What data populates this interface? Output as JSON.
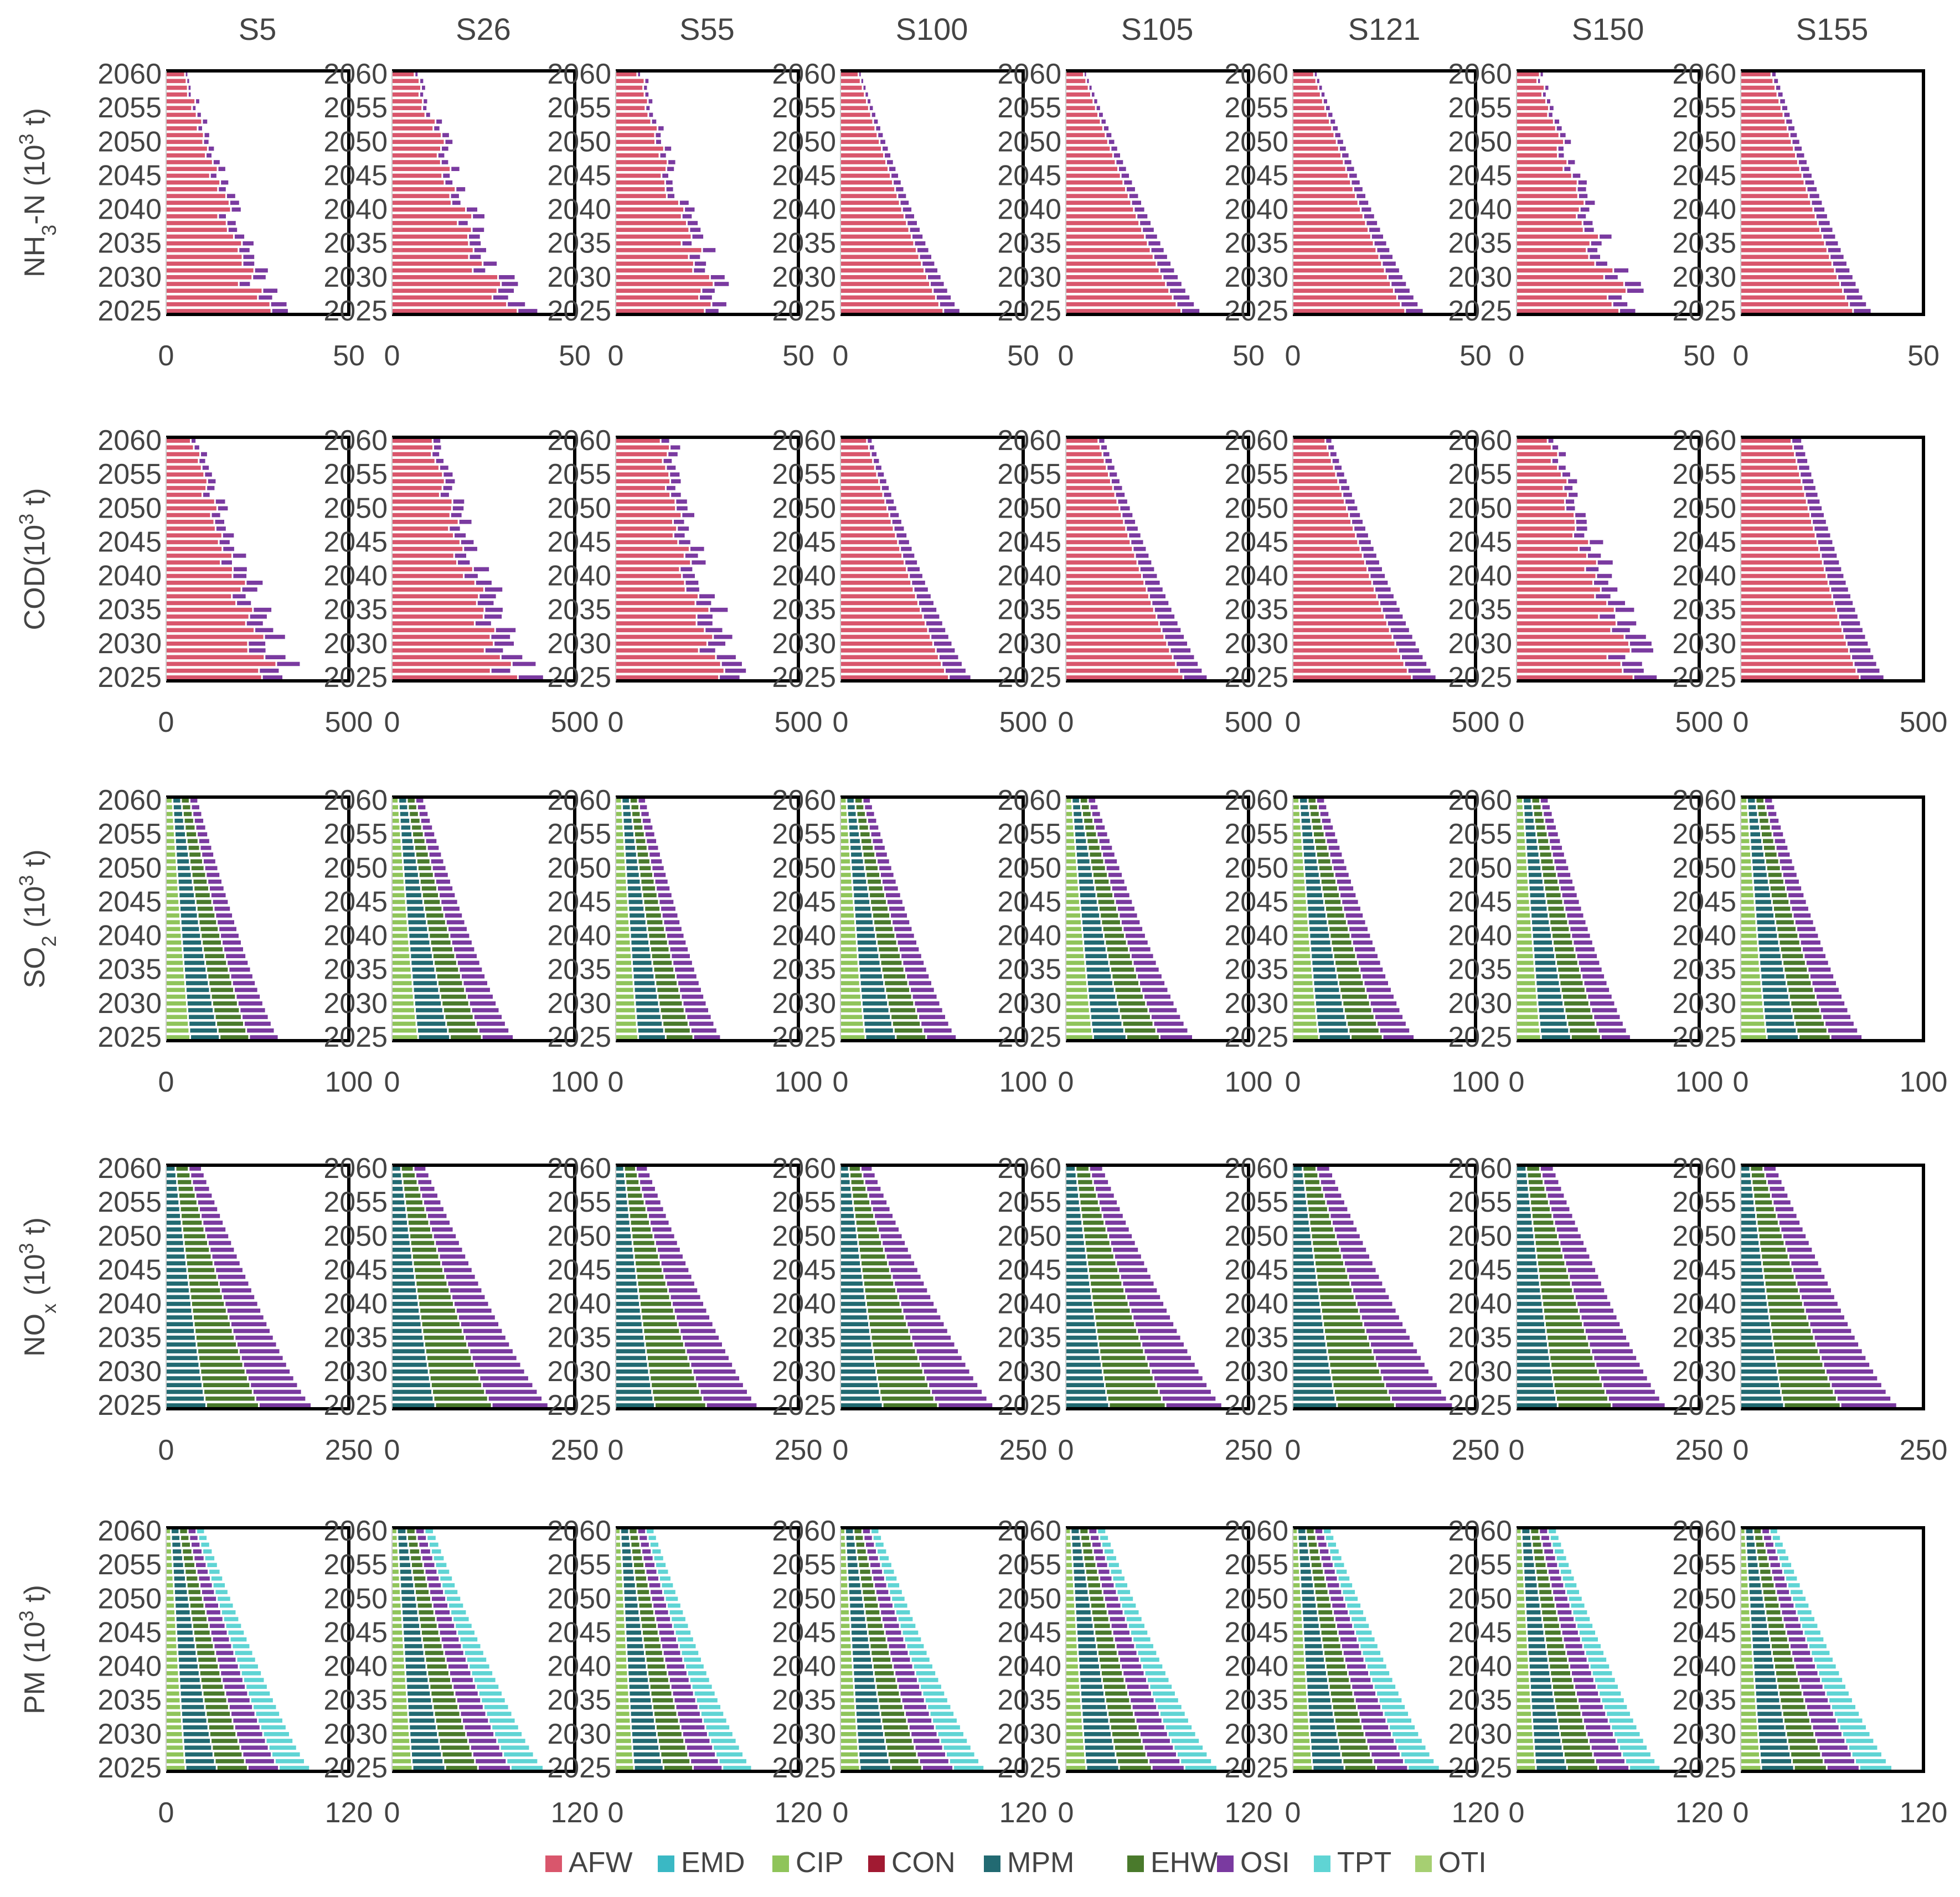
{
  "chart_data": {
    "type": "bar",
    "subtype": "stacked-horizontal",
    "scenarios": [
      "S5",
      "S26",
      "S55",
      "S100",
      "S105",
      "S121",
      "S150",
      "S155"
    ],
    "years": [
      2025,
      2026,
      2027,
      2028,
      2029,
      2030,
      2031,
      2032,
      2033,
      2034,
      2035,
      2036,
      2037,
      2038,
      2039,
      2040,
      2041,
      2042,
      2043,
      2044,
      2045,
      2046,
      2047,
      2048,
      2049,
      2050,
      2051,
      2052,
      2053,
      2054,
      2055,
      2056,
      2057,
      2058,
      2059,
      2060
    ],
    "year_tick_labels": [
      "2025",
      "2030",
      "2035",
      "2040",
      "2045",
      "2050",
      "2055",
      "2060"
    ],
    "legend": [
      {
        "label": "AFW",
        "color": "#d9566c"
      },
      {
        "label": "EMD",
        "color": "#3ab8c4"
      },
      {
        "label": "CIP",
        "color": "#8fc45a"
      },
      {
        "label": "CON",
        "color": "#a11a32"
      },
      {
        "label": "MPM",
        "color": "#226a72"
      },
      {
        "label": "EHW",
        "color": "#4a7a2c"
      },
      {
        "label": "OSI",
        "color": "#7a3aa0"
      },
      {
        "label": "TPT",
        "color": "#5fd4d4"
      },
      {
        "label": "OTI",
        "color": "#a6cf72"
      }
    ],
    "pollutants": [
      {
        "key": "nh3n",
        "label_parts": [
          {
            "t": "NH"
          },
          {
            "t": "3",
            "sub": true
          },
          {
            "t": "-N (10"
          },
          {
            "t": "3",
            "sup": true
          },
          {
            "t": " t)"
          }
        ],
        "xlim": [
          0,
          50
        ],
        "x_tick_labels": [
          "0",
          "50"
        ],
        "sectors": [
          "AFW",
          "OSI"
        ],
        "totals_2025": [
          31,
          36,
          32,
          33,
          37,
          36,
          35,
          36
        ],
        "totals_2060": [
          6,
          8,
          8,
          6,
          6,
          7,
          7,
          10
        ],
        "share_first": [
          0.86,
          0.86,
          0.86,
          0.86,
          0.86,
          0.86,
          0.86,
          0.86
        ],
        "noisy": [
          true,
          true,
          true,
          false,
          false,
          false,
          true,
          false
        ]
      },
      {
        "key": "cod",
        "label_parts": [
          {
            "t": "COD(10"
          },
          {
            "t": "3",
            "sup": true
          },
          {
            "t": " t)"
          }
        ],
        "xlim": [
          0,
          500
        ],
        "x_tick_labels": [
          "0",
          "500"
        ],
        "sectors": [
          "AFW",
          "OSI"
        ],
        "totals_2025": [
          360,
          390,
          340,
          360,
          390,
          395,
          385,
          395
        ],
        "totals_2060": [
          90,
          120,
          160,
          90,
          110,
          110,
          110,
          170
        ],
        "share_first": [
          0.82,
          0.83,
          0.83,
          0.83,
          0.83,
          0.83,
          0.83,
          0.83
        ],
        "noisy": [
          true,
          true,
          true,
          false,
          false,
          false,
          true,
          false
        ]
      },
      {
        "key": "so2",
        "label_parts": [
          {
            "t": "SO"
          },
          {
            "t": "2",
            "sub": true
          },
          {
            "t": " (10"
          },
          {
            "t": "3",
            "sup": true
          },
          {
            "t": " t)"
          }
        ],
        "xlim": [
          0,
          100
        ],
        "x_tick_labels": [
          "0",
          "100"
        ],
        "sectors": [
          "CIP",
          "MPM",
          "EHW",
          "OSI"
        ],
        "totals_2025": [
          62,
          67,
          58,
          64,
          70,
          67,
          63,
          67
        ],
        "totals_2060": [
          18,
          18,
          17,
          17,
          17,
          18,
          18,
          18
        ],
        "share_first": [
          0.22,
          0.22,
          0.22,
          0.22,
          0.22,
          0.22,
          0.22,
          0.22
        ],
        "noisy": [
          false,
          false,
          false,
          false,
          false,
          false,
          false,
          false
        ]
      },
      {
        "key": "nox",
        "label_parts": [
          {
            "t": "NO"
          },
          {
            "t": "x",
            "sub": true
          },
          {
            "t": " (10"
          },
          {
            "t": "3",
            "sup": true
          },
          {
            "t": " t)"
          }
        ],
        "xlim": [
          0,
          250
        ],
        "x_tick_labels": [
          "0",
          "250"
        ],
        "sectors": [
          "MPM",
          "EHW",
          "OSI"
        ],
        "totals_2025": [
          200,
          215,
          195,
          210,
          215,
          220,
          205,
          215
        ],
        "totals_2060": [
          50,
          48,
          45,
          45,
          52,
          52,
          52,
          50
        ],
        "share_first": [
          0.28,
          0.28,
          0.28,
          0.28,
          0.28,
          0.28,
          0.28,
          0.28
        ],
        "noisy": [
          false,
          false,
          false,
          false,
          false,
          false,
          false,
          false
        ]
      },
      {
        "key": "pm",
        "label_parts": [
          {
            "t": "PM (10"
          },
          {
            "t": "3",
            "sup": true
          },
          {
            "t": " t)"
          }
        ],
        "xlim": [
          0,
          120
        ],
        "x_tick_labels": [
          "0",
          "120"
        ],
        "sectors": [
          "CIP",
          "MPM",
          "EHW",
          "OSI",
          "TPT"
        ],
        "totals_2025": [
          95,
          100,
          90,
          95,
          100,
          97,
          95,
          100
        ],
        "totals_2060": [
          26,
          28,
          26,
          26,
          27,
          26,
          27,
          25
        ],
        "share_first": [
          0.14,
          0.14,
          0.14,
          0.14,
          0.14,
          0.14,
          0.14,
          0.14
        ],
        "noisy": [
          false,
          false,
          false,
          false,
          false,
          false,
          false,
          false
        ]
      }
    ]
  }
}
